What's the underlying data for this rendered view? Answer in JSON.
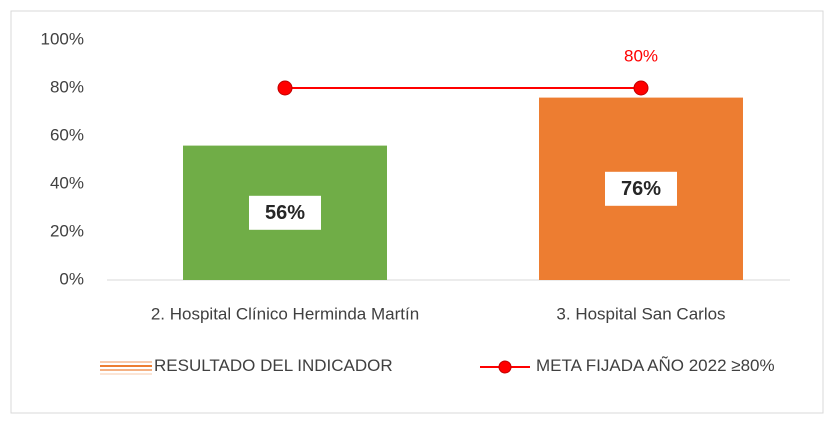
{
  "chart_data": {
    "type": "bar",
    "categories": [
      "2. Hospital Clínico Herminda Martín",
      "3. Hospital San Carlos"
    ],
    "series": [
      {
        "name": "RESULTADO DEL INDICADOR",
        "type": "bar",
        "colors": [
          "#70ad47",
          "#ed7d31"
        ],
        "values": [
          56,
          76
        ],
        "value_labels": [
          "56%",
          "76%"
        ]
      },
      {
        "name": "META FIJADA AÑO 2022 ≥80%",
        "type": "line",
        "color": "#ff0000",
        "values": [
          80,
          80
        ],
        "value_labels": [
          null,
          "80%"
        ]
      }
    ],
    "ylim": [
      0,
      100
    ],
    "yticks": [
      {
        "value": 0,
        "label": "0%"
      },
      {
        "value": 20,
        "label": "20%"
      },
      {
        "value": 40,
        "label": "40%"
      },
      {
        "value": 60,
        "label": "60%"
      },
      {
        "value": 80,
        "label": "80%"
      },
      {
        "value": 100,
        "label": "100%"
      }
    ],
    "grid": false,
    "legend": "bottom"
  }
}
